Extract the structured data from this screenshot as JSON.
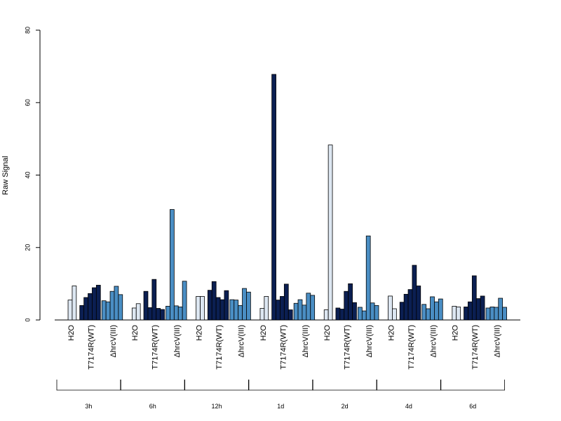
{
  "chart_data": {
    "type": "bar",
    "title": "",
    "xlabel": "",
    "ylabel": "Raw Signal",
    "ylim": [
      0,
      80
    ],
    "yticks": [
      0,
      20,
      40,
      60,
      80
    ],
    "grid": false,
    "colors": {
      "H2O": "#dde7f2",
      "T7174R(WT)": "#0b1f52",
      "ΔhrcV(III)": "#4a8ec4"
    },
    "timepoints": [
      "3h",
      "6h",
      "12h",
      "1d",
      "2d",
      "4d",
      "6d"
    ],
    "groups": [
      "H2O",
      "T7174R(WT)",
      "ΔhrcV(III)"
    ],
    "data": [
      {
        "timepoint": "3h",
        "series": [
          {
            "group": "H2O",
            "values": [
              0,
              5.5,
              9.4
            ]
          },
          {
            "group": "T7174R(WT)",
            "values": [
              4.0,
              6.2,
              7.3,
              8.9,
              9.6
            ]
          },
          {
            "group": "ΔhrcV(III)",
            "values": [
              5.3,
              5.0,
              7.9,
              9.3,
              7.0
            ]
          }
        ]
      },
      {
        "timepoint": "6h",
        "series": [
          {
            "group": "H2O",
            "values": [
              0,
              3.3,
              4.5
            ]
          },
          {
            "group": "T7174R(WT)",
            "values": [
              7.9,
              3.4,
              11.2,
              3.2,
              2.9
            ]
          },
          {
            "group": "ΔhrcV(III)",
            "values": [
              3.8,
              30.5,
              3.9,
              3.6,
              10.7
            ]
          }
        ]
      },
      {
        "timepoint": "12h",
        "series": [
          {
            "group": "H2O",
            "values": [
              0,
              6.5,
              6.5
            ]
          },
          {
            "group": "T7174R(WT)",
            "values": [
              8.2,
              10.6,
              6.2,
              5.6,
              8.1
            ]
          },
          {
            "group": "ΔhrcV(III)",
            "values": [
              5.6,
              5.5,
              4.0,
              8.7,
              7.7
            ]
          }
        ]
      },
      {
        "timepoint": "1d",
        "series": [
          {
            "group": "H2O",
            "values": [
              0,
              3.2,
              6.5
            ]
          },
          {
            "group": "T7174R(WT)",
            "values": [
              67.8,
              5.5,
              6.5,
              9.9,
              2.8
            ]
          },
          {
            "group": "ΔhrcV(III)",
            "values": [
              4.6,
              5.6,
              4.1,
              7.4,
              6.8
            ]
          }
        ]
      },
      {
        "timepoint": "2d",
        "series": [
          {
            "group": "H2O",
            "values": [
              0,
              2.8,
              48.3
            ]
          },
          {
            "group": "T7174R(WT)",
            "values": [
              3.3,
              3.0,
              7.9,
              10.0,
              4.8
            ]
          },
          {
            "group": "ΔhrcV(III)",
            "values": [
              3.5,
              2.5,
              23.2,
              4.7,
              4.0
            ]
          }
        ]
      },
      {
        "timepoint": "4d",
        "series": [
          {
            "group": "H2O",
            "values": [
              0,
              6.6,
              3.1
            ]
          },
          {
            "group": "T7174R(WT)",
            "values": [
              4.9,
              7.1,
              8.4,
              15.1,
              9.4
            ]
          },
          {
            "group": "ΔhrcV(III)",
            "values": [
              4.3,
              3.1,
              6.4,
              5.0,
              5.8
            ]
          }
        ]
      },
      {
        "timepoint": "6d",
        "series": [
          {
            "group": "H2O",
            "values": [
              0,
              3.8,
              3.6
            ]
          },
          {
            "group": "T7174R(WT)",
            "values": [
              3.6,
              5.0,
              12.2,
              5.9,
              6.6
            ]
          },
          {
            "group": "ΔhrcV(III)",
            "values": [
              3.3,
              3.6,
              3.5,
              6.0,
              3.5
            ]
          }
        ]
      }
    ]
  }
}
